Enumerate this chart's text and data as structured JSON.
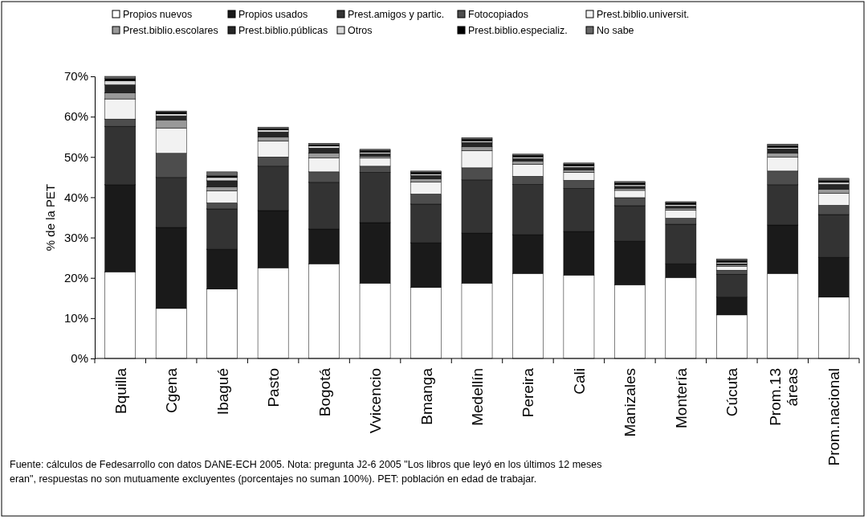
{
  "chart_data": {
    "type": "bar",
    "stacked": true,
    "ylabel": "% de la PET",
    "categories": [
      "Bquilla",
      "Cgena",
      "Ibagué",
      "Pasto",
      "Bogotá",
      "Vvicencio",
      "Bmanga",
      "Medellín",
      "Pereira",
      "Cali",
      "Manizales",
      "Montería",
      "Cúcuta",
      "Prom.13 áreas",
      "Prom.nacional"
    ],
    "series": [
      {
        "name": "Propios nuevos",
        "color": "#ffffff",
        "values": [
          21.5,
          12.4,
          17.2,
          22.5,
          23.5,
          18.7,
          17.6,
          18.7,
          21.1,
          20.7,
          18.3,
          20.1,
          10.8,
          21.1,
          15.2
        ]
      },
      {
        "name": "Propios usados",
        "color": "#1a1a1a",
        "values": [
          21.6,
          20.1,
          9.9,
          14.2,
          8.6,
          15.0,
          11.1,
          12.4,
          9.6,
          10.8,
          10.8,
          3.4,
          4.4,
          12.0,
          9.9
        ]
      },
      {
        "name": "Prest.amigos y partic.",
        "color": "#333333",
        "values": [
          14.5,
          12.4,
          10.0,
          11.0,
          11.6,
          12.5,
          9.6,
          13.2,
          12.5,
          10.7,
          8.8,
          9.8,
          5.7,
          10.0,
          10.6
        ]
      },
      {
        "name": "Fotocopiados",
        "color": "#4d4d4d",
        "values": [
          1.8,
          6.0,
          1.5,
          2.3,
          2.6,
          1.5,
          2.5,
          3.0,
          2.0,
          2.0,
          2.0,
          1.5,
          1.0,
          3.4,
          2.3
        ]
      },
      {
        "name": "Prest.biblio.universit.",
        "color": "#f2f2f2",
        "values": [
          5.0,
          6.3,
          3.0,
          4.0,
          3.5,
          2.0,
          3.0,
          4.3,
          3.0,
          2.0,
          1.8,
          2.0,
          1.0,
          3.5,
          3.0
        ]
      },
      {
        "name": "Prest.biblio.escolares",
        "color": "#999999",
        "values": [
          1.5,
          2.0,
          1.0,
          1.0,
          1.2,
          0.5,
          0.8,
          1.0,
          0.8,
          0.6,
          0.5,
          0.5,
          0.3,
          1.0,
          1.0
        ]
      },
      {
        "name": "Prest.biblio.públicas",
        "color": "#262626",
        "values": [
          2.0,
          1.0,
          1.5,
          1.2,
          1.2,
          0.6,
          0.8,
          1.0,
          0.6,
          0.6,
          0.5,
          0.5,
          0.3,
          1.0,
          1.2
        ]
      },
      {
        "name": "Otros",
        "color": "#d9d9d9",
        "values": [
          1.0,
          0.5,
          0.8,
          0.5,
          0.5,
          0.4,
          0.4,
          0.4,
          0.4,
          0.4,
          0.4,
          0.4,
          0.4,
          0.4,
          0.5
        ]
      },
      {
        "name": "Prest.biblio.especializ.",
        "color": "#000000",
        "values": [
          0.5,
          0.4,
          0.4,
          0.3,
          0.3,
          0.4,
          0.4,
          0.4,
          0.4,
          0.4,
          0.4,
          0.4,
          0.4,
          0.3,
          0.4
        ]
      },
      {
        "name": "No sabe",
        "color": "#666666",
        "values": [
          0.6,
          0.3,
          1.0,
          0.4,
          0.4,
          0.3,
          0.3,
          0.4,
          0.3,
          0.3,
          0.4,
          0.3,
          0.4,
          0.5,
          0.6
        ]
      }
    ],
    "ylim": [
      0,
      70
    ],
    "yticks": [
      {
        "value": 0,
        "label": "0%"
      },
      {
        "value": 10,
        "label": "10%"
      },
      {
        "value": 20,
        "label": "20%"
      },
      {
        "value": 30,
        "label": "30%"
      },
      {
        "value": 40,
        "label": "40%"
      },
      {
        "value": 50,
        "label": "50%"
      },
      {
        "value": 60,
        "label": "60%"
      },
      {
        "value": 70,
        "label": "70%"
      }
    ],
    "legend": "top",
    "annotations": [
      "Fuente: cálculos de Fedesarrollo con datos DANE-ECH 2005. Nota: pregunta J2-6 2005 \"Los libros que leyó en los últimos 12 meses eran\", respuestas no son mutuamente excluyentes (porcentajes no suman 100%). PET: población en edad de trabajar."
    ]
  }
}
